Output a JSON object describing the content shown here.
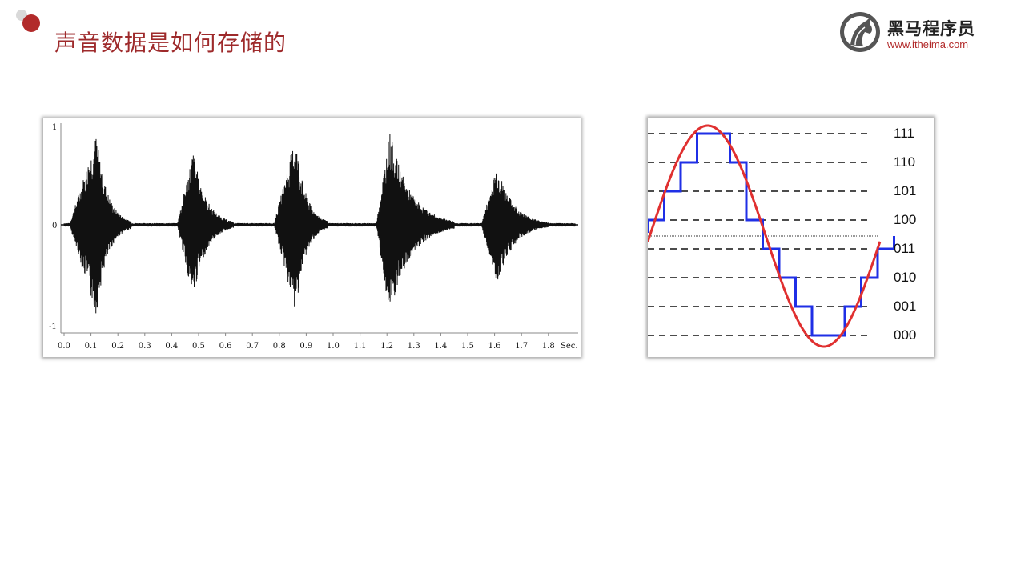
{
  "slide": {
    "title": "声音数据是如何存储的"
  },
  "logo": {
    "name": "黑马程序员",
    "url": "www.itheima.com",
    "icon": "horse-head-icon"
  },
  "colors": {
    "accent": "#b22a2a",
    "waveform": "#111111",
    "sine": "#e03030",
    "steps": "#2030e0"
  },
  "waveform": {
    "y_ticks": [
      "1",
      "0",
      "-1"
    ],
    "x_ticks": [
      "0.0",
      "0.1",
      "0.2",
      "0.3",
      "0.4",
      "0.5",
      "0.6",
      "0.7",
      "0.8",
      "0.9",
      "1.0",
      "1.1",
      "1.2",
      "1.3",
      "1.4",
      "1.5",
      "1.6",
      "1.7",
      "1.8"
    ],
    "x_unit": "Sec.",
    "bursts": [
      {
        "start": 0.02,
        "peak": 0.12,
        "end": 0.25,
        "amp": 0.95
      },
      {
        "start": 0.42,
        "peak": 0.48,
        "end": 0.63,
        "amp": 0.78
      },
      {
        "start": 0.78,
        "peak": 0.86,
        "end": 0.98,
        "amp": 0.93
      },
      {
        "start": 1.16,
        "peak": 1.21,
        "end": 1.45,
        "amp": 0.98
      },
      {
        "start": 1.55,
        "peak": 1.61,
        "end": 1.8,
        "amp": 0.62
      }
    ]
  },
  "quantization": {
    "levels": [
      "111",
      "110",
      "101",
      "100",
      "011",
      "010",
      "001",
      "000"
    ],
    "steps": [
      4,
      5,
      6,
      7,
      7,
      6,
      4,
      3,
      2,
      1,
      0,
      0,
      1,
      2,
      3
    ]
  }
}
